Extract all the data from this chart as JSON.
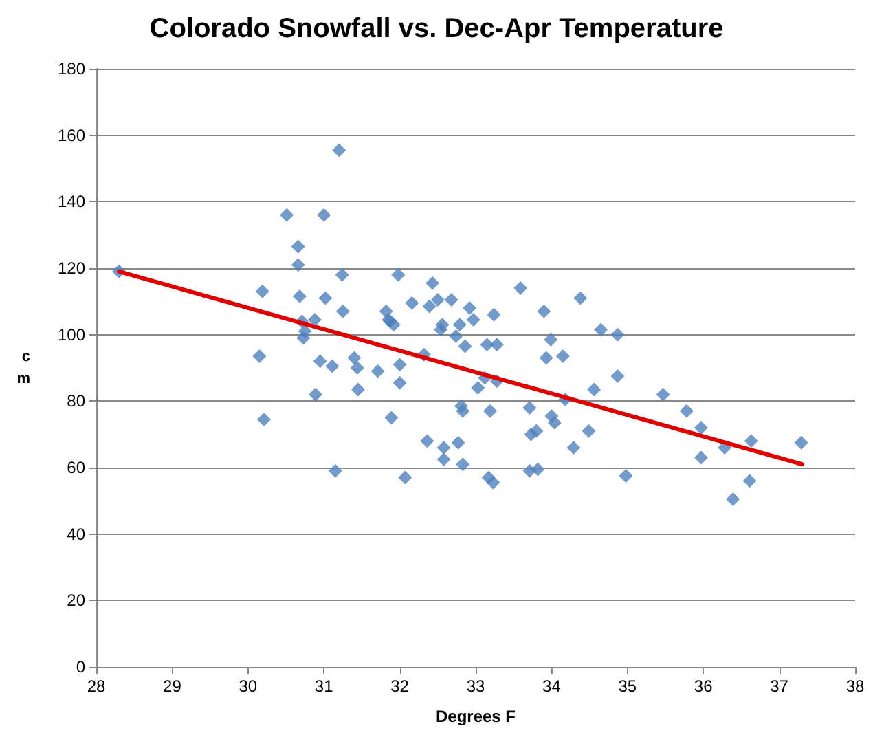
{
  "chart_data": {
    "type": "scatter",
    "title": "Colorado Snowfall vs. Dec-Apr Temperature",
    "xlabel": "Degrees F",
    "ylabel": "cm",
    "xlim": [
      28,
      38
    ],
    "xticks": [
      28,
      29,
      30,
      31,
      32,
      33,
      34,
      35,
      36,
      37,
      38
    ],
    "ylim": [
      0,
      180
    ],
    "yticks": [
      0,
      20,
      40,
      60,
      80,
      100,
      120,
      140,
      160,
      180
    ],
    "grid": "y",
    "marker": "diamond",
    "series": [
      {
        "color": "#4f81bd",
        "x": [
          28.3,
          30.15,
          30.21,
          30.19,
          30.51,
          30.66,
          30.66,
          30.68,
          30.71,
          30.73,
          30.75,
          30.88,
          30.89,
          30.95,
          31.0,
          31.02,
          31.11,
          31.15,
          31.2,
          31.24,
          31.25,
          31.4,
          31.44,
          31.45,
          31.71,
          31.82,
          31.85,
          31.87,
          31.89,
          31.92,
          31.98,
          32.0,
          32.0,
          32.07,
          32.16,
          32.32,
          32.36,
          32.39,
          32.43,
          32.5,
          32.54,
          32.56,
          32.58,
          32.58,
          32.68,
          32.74,
          32.77,
          32.79,
          32.81,
          32.83,
          32.83,
          32.86,
          32.92,
          32.97,
          33.03,
          33.12,
          33.15,
          33.17,
          33.19,
          33.23,
          33.24,
          33.28,
          33.28,
          33.59,
          33.71,
          33.73,
          33.71,
          33.8,
          33.82,
          33.9,
          33.93,
          33.99,
          34.0,
          34.04,
          34.15,
          34.18,
          34.29,
          34.38,
          34.49,
          34.56,
          34.65,
          34.87,
          34.87,
          34.98,
          35.47,
          35.78,
          35.97,
          35.97,
          36.28,
          36.39,
          36.61,
          36.63,
          37.29
        ],
        "values": [
          119,
          93.5,
          74.5,
          113,
          136,
          121,
          126.5,
          111.5,
          104,
          99,
          101,
          104.5,
          82,
          92,
          136,
          111,
          90.5,
          59,
          155.5,
          118,
          107,
          93,
          90,
          83.5,
          89,
          107,
          104.5,
          104,
          75,
          103,
          118,
          91,
          85.5,
          57,
          109.5,
          94,
          68,
          108.5,
          115.5,
          110.5,
          101.5,
          103,
          66,
          62.5,
          110.5,
          99.5,
          67.5,
          103,
          78.5,
          77,
          61,
          96.5,
          108,
          104.5,
          84,
          87,
          97,
          57,
          77,
          55.5,
          106,
          86,
          97,
          114,
          78,
          70,
          59,
          71,
          59.5,
          107,
          93,
          98.5,
          75.5,
          73.5,
          93.5,
          80.5,
          66,
          111,
          71,
          83.5,
          101.5,
          100,
          87.5,
          57.5,
          82,
          77,
          72,
          63,
          66,
          50.5,
          56,
          68,
          67.5
        ]
      },
      {
        "type": "line",
        "color": "#e00000",
        "marker": "none",
        "x": [
          28.3,
          37.3
        ],
        "values": [
          119,
          61
        ]
      }
    ]
  }
}
